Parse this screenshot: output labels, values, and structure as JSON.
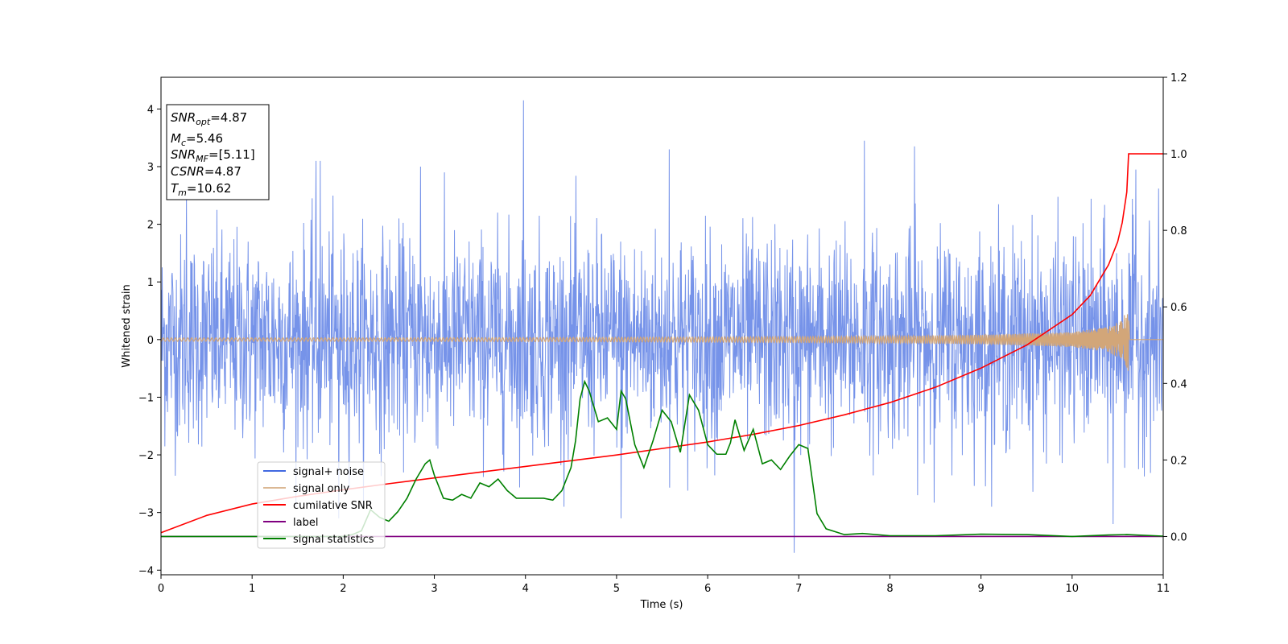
{
  "chart_data": {
    "type": "line",
    "xlabel": "Time (s)",
    "ylabel": "Whitened strain",
    "xlim": [
      0,
      11
    ],
    "ylim_left": [
      -4.08,
      4.55
    ],
    "ylim_right": [
      -0.1,
      1.2
    ],
    "x_ticks": [
      "0",
      "1",
      "2",
      "3",
      "4",
      "5",
      "6",
      "7",
      "8",
      "9",
      "10",
      "11"
    ],
    "y_left_ticks": [
      "−4",
      "−3",
      "−2",
      "−1",
      "0",
      "1",
      "2",
      "3",
      "4"
    ],
    "y_right_ticks": [
      "0.0",
      "0.2",
      "0.4",
      "0.6",
      "0.8",
      "1.0",
      "1.2"
    ],
    "grid": false,
    "legend_placement": "lower-left",
    "annotation": {
      "lines": [
        {
          "var": "SNR",
          "sub": "opt",
          "value": "=4.87"
        },
        {
          "var": "M",
          "sub": "c",
          "value": "=5.46"
        },
        {
          "var": "SNR",
          "sub": "MF",
          "value": "=[5.11]"
        },
        {
          "var": "CSNR",
          "sub": "",
          "value": "=4.87"
        },
        {
          "var": "T",
          "sub": "m",
          "value": "=10.62"
        }
      ]
    },
    "series": [
      {
        "name": "signal+ noise",
        "axis": "left",
        "color": "#4169e1",
        "envelope_sigma": 0.9,
        "range_observed": [
          -3.7,
          4.15
        ],
        "spikes": [
          [
            0.28,
            2.5
          ],
          [
            1.7,
            3.1
          ],
          [
            1.75,
            3.1
          ],
          [
            1.95,
            -3.1
          ],
          [
            2.85,
            3.0
          ],
          [
            3.98,
            4.15
          ],
          [
            5.05,
            -3.1
          ],
          [
            5.58,
            3.3
          ],
          [
            6.95,
            -3.7
          ],
          [
            7.72,
            3.45
          ],
          [
            8.27,
            3.35
          ],
          [
            10.45,
            -3.2
          ],
          [
            10.7,
            2.95
          ]
        ]
      },
      {
        "name": "signal only",
        "axis": "left",
        "color": "#d2a679",
        "amplitude": [
          [
            0,
            0.03
          ],
          [
            2,
            0.03
          ],
          [
            4,
            0.035
          ],
          [
            6,
            0.045
          ],
          [
            8,
            0.06
          ],
          [
            9,
            0.08
          ],
          [
            10,
            0.13
          ],
          [
            10.4,
            0.22
          ],
          [
            10.55,
            0.35
          ],
          [
            10.6,
            0.5
          ],
          [
            10.62,
            0.6
          ],
          [
            10.63,
            0.0
          ],
          [
            11,
            0.0
          ]
        ]
      },
      {
        "name": "cumilative SNR",
        "axis": "right",
        "color": "#ff0000",
        "x": [
          0,
          0.5,
          1,
          1.5,
          2,
          2.5,
          3,
          3.5,
          4,
          4.5,
          5,
          5.5,
          6,
          6.5,
          7,
          7.5,
          8,
          8.5,
          9,
          9.5,
          10,
          10.2,
          10.4,
          10.5,
          10.55,
          10.6,
          10.62,
          10.7,
          11
        ],
        "y": [
          0.01,
          0.055,
          0.085,
          0.105,
          0.122,
          0.138,
          0.153,
          0.168,
          0.183,
          0.198,
          0.213,
          0.23,
          0.247,
          0.267,
          0.29,
          0.318,
          0.35,
          0.39,
          0.44,
          0.5,
          0.58,
          0.63,
          0.71,
          0.77,
          0.82,
          0.9,
          1.0,
          1.0,
          1.0
        ]
      },
      {
        "name": "label",
        "axis": "right",
        "color": "#800080",
        "x": [
          0,
          11
        ],
        "y": [
          0.0,
          0.0
        ]
      },
      {
        "name": "signal statistics",
        "axis": "right",
        "color": "#008000",
        "x": [
          0,
          0.5,
          1,
          1.5,
          2,
          2.1,
          2.2,
          2.3,
          2.4,
          2.5,
          2.6,
          2.7,
          2.8,
          2.9,
          2.95,
          3.0,
          3.1,
          3.2,
          3.3,
          3.4,
          3.5,
          3.6,
          3.7,
          3.8,
          3.9,
          4.0,
          4.1,
          4.2,
          4.3,
          4.4,
          4.5,
          4.55,
          4.6,
          4.65,
          4.7,
          4.8,
          4.9,
          5.0,
          5.05,
          5.1,
          5.2,
          5.3,
          5.4,
          5.5,
          5.6,
          5.7,
          5.8,
          5.9,
          6.0,
          6.1,
          6.2,
          6.25,
          6.3,
          6.4,
          6.5,
          6.6,
          6.7,
          6.8,
          6.9,
          7.0,
          7.1,
          7.2,
          7.3,
          7.5,
          7.7,
          8.0,
          8.5,
          9.0,
          9.5,
          10.0,
          10.4,
          10.6,
          11.0
        ],
        "y": [
          0.0,
          0.0,
          0.0,
          0.0,
          0.0,
          0.005,
          0.015,
          0.07,
          0.05,
          0.04,
          0.065,
          0.1,
          0.15,
          0.19,
          0.2,
          0.16,
          0.1,
          0.095,
          0.11,
          0.1,
          0.14,
          0.13,
          0.15,
          0.12,
          0.1,
          0.1,
          0.1,
          0.1,
          0.095,
          0.12,
          0.18,
          0.25,
          0.36,
          0.405,
          0.38,
          0.3,
          0.31,
          0.28,
          0.38,
          0.36,
          0.24,
          0.18,
          0.25,
          0.33,
          0.3,
          0.22,
          0.37,
          0.33,
          0.24,
          0.215,
          0.215,
          0.245,
          0.305,
          0.225,
          0.28,
          0.19,
          0.2,
          0.175,
          0.21,
          0.24,
          0.23,
          0.06,
          0.02,
          0.005,
          0.008,
          0.002,
          0.002,
          0.006,
          0.005,
          0.0,
          0.004,
          0.005,
          0.001
        ]
      }
    ]
  }
}
